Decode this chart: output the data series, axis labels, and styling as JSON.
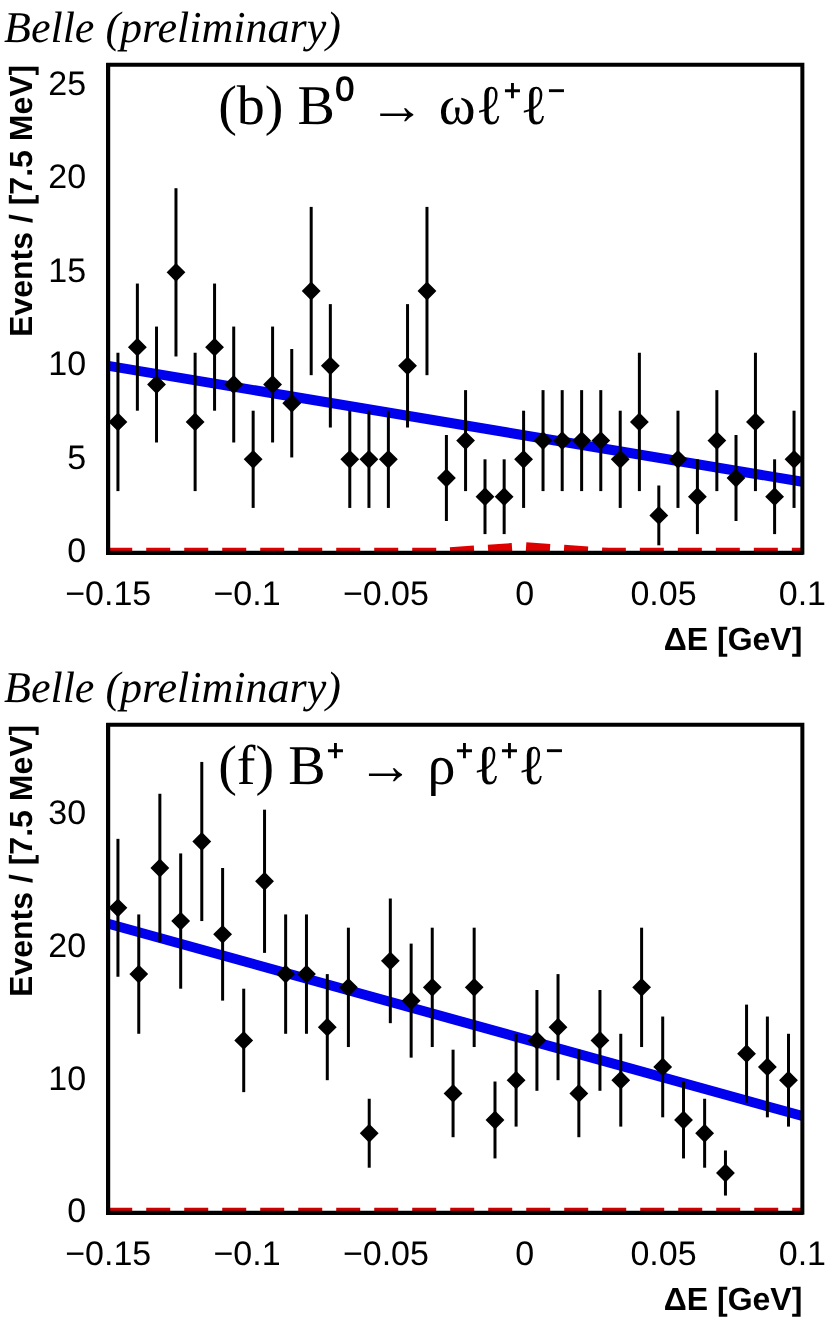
{
  "chart_data": [
    {
      "type": "scatter",
      "title": "Belle (preliminary)",
      "annotations": [
        "(b) B⁰ → ωℓ⁺ℓ⁻"
      ],
      "xlabel": "ΔE [GeV]",
      "ylabel": "Events / [7.5 MeV]",
      "xlim": [
        -0.15,
        0.1
      ],
      "xticks": [
        -0.15,
        -0.1,
        -0.05,
        0,
        0.05,
        0.1
      ],
      "ylim": [
        0,
        26.1
      ],
      "yticks": [
        0,
        5,
        10,
        15,
        20,
        25
      ],
      "grid": false,
      "legend": false,
      "series": [
        {
          "marker": "diamond",
          "color": "#000000",
          "x": [
            -0.1465,
            -0.1395,
            -0.1326,
            -0.1256,
            -0.1187,
            -0.1117,
            -0.1048,
            -0.0978,
            -0.0908,
            -0.0839,
            -0.0769,
            -0.07,
            -0.063,
            -0.0561,
            -0.0491,
            -0.0422,
            -0.0352,
            -0.0282,
            -0.0213,
            -0.0143,
            -0.0074,
            -0.0004,
            0.0066,
            0.0135,
            0.0205,
            0.0274,
            0.0344,
            0.0413,
            0.0483,
            0.0552,
            0.0622,
            0.0692,
            0.0761,
            0.0831,
            0.09,
            0.097
          ],
          "values": [
            7,
            11,
            9,
            15,
            7,
            11,
            9,
            5,
            9,
            8,
            14,
            10,
            5,
            5,
            5,
            10,
            14,
            4,
            6,
            3,
            3,
            5,
            6,
            6,
            6,
            6,
            5,
            7,
            2,
            5,
            3,
            6,
            4,
            7,
            3,
            5
          ],
          "errors": [
            3.7,
            3.4,
            3.1,
            4.5,
            3.7,
            3.4,
            3.1,
            2.6,
            3.1,
            2.9,
            4.5,
            3.3,
            2.6,
            2.6,
            2.6,
            3.3,
            4.5,
            2.3,
            2.7,
            2,
            2,
            2.6,
            2.7,
            2.7,
            2.7,
            2.7,
            2.6,
            3.7,
            1.6,
            2.6,
            2,
            2.7,
            2.3,
            3.7,
            2,
            2.6
          ]
        },
        {
          "type": "line",
          "color": "#0000ee",
          "x": [
            -0.15,
            0.1
          ],
          "values": [
            10,
            3.8
          ],
          "line_style": "solid"
        },
        {
          "type": "line",
          "color": "#dd0000",
          "x": [
            -0.15,
            -0.03,
            0,
            0.03,
            0.1
          ],
          "values": [
            0,
            0,
            0.3,
            0,
            0
          ],
          "line_style": "dashed"
        }
      ]
    },
    {
      "type": "scatter",
      "title": "Belle (preliminary)",
      "annotations": [
        "(f) B⁺ → ρ⁺ℓ⁺ℓ⁻"
      ],
      "xlabel": "ΔE [GeV]",
      "ylabel": "Events / [7.5 MeV]",
      "xlim": [
        -0.15,
        0.1
      ],
      "xticks": [
        -0.15,
        -0.1,
        -0.05,
        0,
        0.05,
        0.1
      ],
      "ylim": [
        0,
        36.8
      ],
      "yticks": [
        0,
        10,
        20,
        30
      ],
      "grid": false,
      "legend": false,
      "series": [
        {
          "marker": "diamond",
          "color": "#000000",
          "x": [
            -0.1465,
            -0.139,
            -0.1314,
            -0.1239,
            -0.1163,
            -0.1088,
            -0.1012,
            -0.0937,
            -0.0861,
            -0.0786,
            -0.0711,
            -0.0635,
            -0.056,
            -0.0484,
            -0.0409,
            -0.0333,
            -0.0258,
            -0.0182,
            -0.0107,
            -0.0031,
            0.0044,
            0.012,
            0.0195,
            0.0271,
            0.0346,
            0.0421,
            0.0497,
            0.0572,
            0.0648,
            0.0723,
            0.0799,
            0.0874,
            0.095
          ],
          "values": [
            23,
            18,
            26,
            22,
            28,
            21,
            13,
            25,
            18,
            18,
            14,
            17,
            6,
            19,
            16,
            17,
            9,
            17,
            7,
            10,
            13,
            14,
            9,
            13,
            10,
            17,
            11,
            7,
            6,
            3,
            12,
            11,
            10
          ],
          "errors": [
            5.2,
            4.5,
            5.6,
            5.1,
            6,
            5,
            3.9,
            5.4,
            4.5,
            4.5,
            4,
            4.5,
            2.6,
            4.7,
            4.3,
            4.5,
            3.3,
            4.5,
            2.9,
            3.5,
            3.8,
            4,
            3.3,
            3.8,
            3.5,
            4.5,
            3.8,
            2.9,
            2.6,
            1.7,
            3.7,
            3.8,
            3.5
          ]
        },
        {
          "type": "line",
          "color": "#0000ee",
          "x": [
            -0.15,
            0.1
          ],
          "values": [
            21.8,
            7.3
          ],
          "line_style": "solid"
        },
        {
          "type": "line",
          "color": "#cc0000",
          "x": [
            -0.15,
            0.1
          ],
          "values": [
            0,
            0
          ],
          "line_style": "dashed"
        }
      ]
    }
  ]
}
